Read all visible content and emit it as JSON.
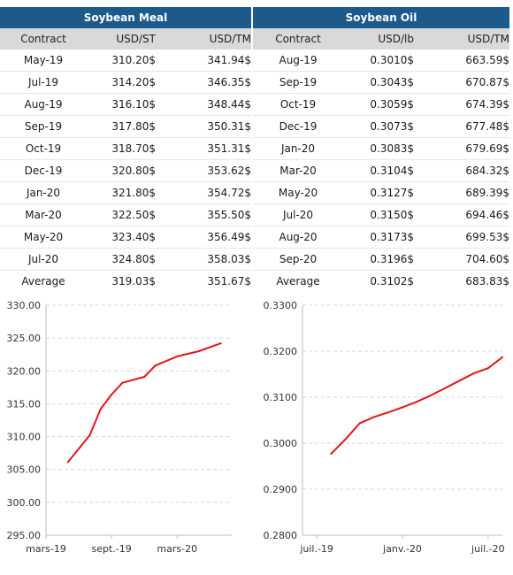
{
  "meal": {
    "title": "Soybean Meal",
    "headers": [
      "Contract",
      "USD/ST",
      "USD/TM"
    ],
    "rows": [
      [
        "May-19",
        "310.20$",
        "341.94$"
      ],
      [
        "Jul-19",
        "314.20$",
        "346.35$"
      ],
      [
        "Aug-19",
        "316.10$",
        "348.44$"
      ],
      [
        "Sep-19",
        "317.80$",
        "350.31$"
      ],
      [
        "Oct-19",
        "318.70$",
        "351.31$"
      ],
      [
        "Dec-19",
        "320.80$",
        "353.62$"
      ],
      [
        "Jan-20",
        "321.80$",
        "354.72$"
      ],
      [
        "Mar-20",
        "322.50$",
        "355.50$"
      ],
      [
        "May-20",
        "323.40$",
        "356.49$"
      ],
      [
        "Jul-20",
        "324.80$",
        "358.03$"
      ]
    ],
    "average": [
      "Average",
      "319.03$",
      "351.67$"
    ]
  },
  "oil": {
    "title": "Soybean Oil",
    "headers": [
      "Contract",
      "USD/lb",
      "USD/TM"
    ],
    "rows": [
      [
        "Aug-19",
        "0.3010$",
        "663.59$"
      ],
      [
        "Sep-19",
        "0.3043$",
        "670.87$"
      ],
      [
        "Oct-19",
        "0.3059$",
        "674.39$"
      ],
      [
        "Dec-19",
        "0.3073$",
        "677.48$"
      ],
      [
        "Jan-20",
        "0.3083$",
        "679.69$"
      ],
      [
        "Mar-20",
        "0.3104$",
        "684.32$"
      ],
      [
        "May-20",
        "0.3127$",
        "689.39$"
      ],
      [
        "Jul-20",
        "0.3150$",
        "694.46$"
      ],
      [
        "Aug-20",
        "0.3173$",
        "699.53$"
      ],
      [
        "Sep-20",
        "0.3196$",
        "704.60$"
      ]
    ],
    "average": [
      "Average",
      "0.3102$",
      "683.83$"
    ]
  },
  "chart_data": [
    {
      "type": "line",
      "x": [
        "2019-05",
        "2019-07",
        "2019-08",
        "2019-09",
        "2019-10",
        "2019-12",
        "2020-01",
        "2020-03",
        "2020-05",
        "2020-07"
      ],
      "series": [
        {
          "values": [
            306.1,
            310.2,
            314.2,
            316.4,
            318.2,
            319.1,
            320.8,
            322.2,
            323.0,
            324.2
          ]
        }
      ],
      "ylim": [
        295,
        330
      ],
      "y_ticks": [
        "295.00",
        "300.00",
        "305.00",
        "310.00",
        "315.00",
        "320.00",
        "325.00",
        "330.00"
      ],
      "x_ticks": [
        {
          "x": "2019-03",
          "label": "mars-19"
        },
        {
          "x": "2019-09",
          "label": "sept.-19"
        },
        {
          "x": "2020-03",
          "label": "mars-20"
        }
      ],
      "xlim": [
        "2019-03",
        "2020-08"
      ],
      "grid": "horizontal dashed",
      "line_color": "#e1151b"
    },
    {
      "type": "line",
      "x": [
        "2019-08",
        "2019-09",
        "2019-10",
        "2019-11",
        "2019-12",
        "2020-01",
        "2020-02",
        "2020-03",
        "2020-04",
        "2020-05",
        "2020-06",
        "2020-07",
        "2020-08"
      ],
      "series": [
        {
          "values": [
            0.2977,
            0.3008,
            0.3043,
            0.3057,
            0.3067,
            0.3078,
            0.309,
            0.3104,
            0.312,
            0.3136,
            0.3152,
            0.3163,
            0.3187
          ]
        }
      ],
      "ylim": [
        0.28,
        0.33
      ],
      "y_ticks": [
        "0.2800",
        "0.2900",
        "0.3000",
        "0.3100",
        "0.3200",
        "0.3300"
      ],
      "x_ticks": [
        {
          "x": "2019-07",
          "label": "juil.-19"
        },
        {
          "x": "2020-01",
          "label": "janv.-20"
        },
        {
          "x": "2020-07",
          "label": "juil.-20"
        }
      ],
      "xlim": [
        "2019-06",
        "2020-08"
      ],
      "grid": "horizontal dashed",
      "line_color": "#e1151b"
    }
  ]
}
